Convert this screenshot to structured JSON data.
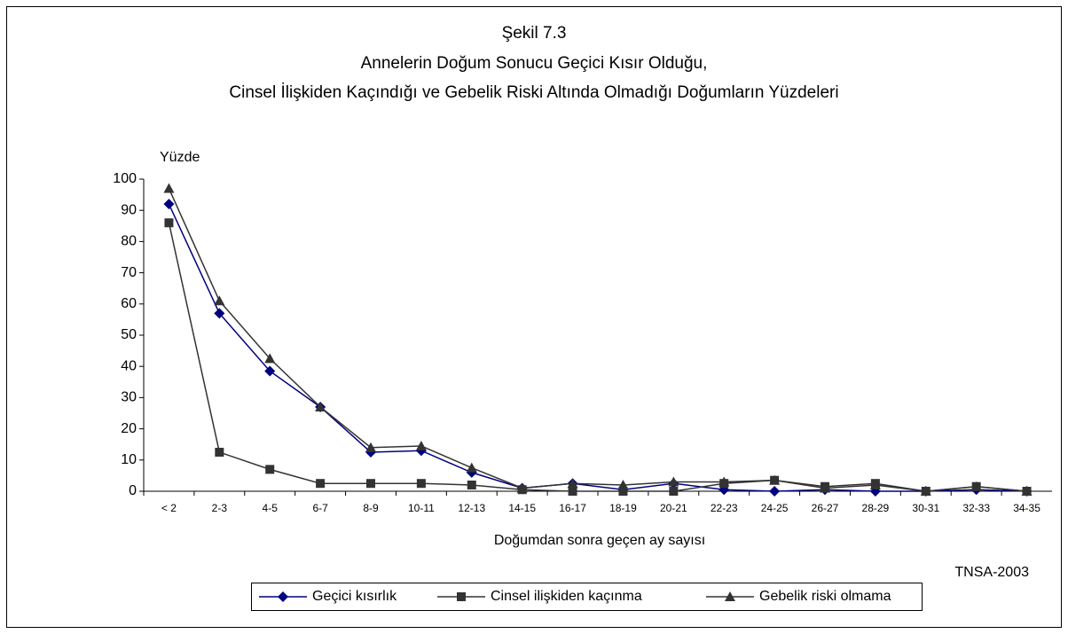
{
  "chart_data": {
    "type": "line",
    "title_lines": [
      "Şekil 7.3",
      "Annelerin Doğum Sonucu Geçici Kısır Olduğu,",
      "Cinsel İlişkiden Kaçındığı ve Gebelik Riski Altında Olmadığı Doğumların Yüzdeleri"
    ],
    "y_label": "Yüzde",
    "x_label": "Doğumdan sonra geçen ay sayısı",
    "source": "TNSA-2003",
    "categories": [
      "< 2",
      "2-3",
      "4-5",
      "6-7",
      "8-9",
      "10-11",
      "12-13",
      "14-15",
      "16-17",
      "18-19",
      "20-21",
      "22-23",
      "24-25",
      "26-27",
      "28-29",
      "30-31",
      "32-33",
      "34-35"
    ],
    "series": [
      {
        "name": "Geçici kısırlık",
        "color": "#000080",
        "marker": "diamond",
        "values": [
          92,
          57,
          38.5,
          27,
          12.5,
          13,
          6,
          1,
          2.5,
          0.5,
          2.5,
          0.5,
          0,
          0.5,
          0,
          0,
          0.5,
          0
        ]
      },
      {
        "name": "Cinsel ilişkiden kaçınma",
        "color": "#333333",
        "marker": "square",
        "values": [
          86,
          12.5,
          7,
          2.5,
          2.5,
          2.5,
          2,
          0.5,
          0,
          0,
          0,
          2.5,
          3.5,
          1.5,
          2.5,
          0,
          1.5,
          0
        ]
      },
      {
        "name": "Gebelik riski olmama",
        "color": "#333333",
        "marker": "triangle",
        "values": [
          97,
          61,
          42.5,
          27,
          14,
          14.5,
          7.5,
          1,
          2.5,
          2,
          3,
          3,
          3.5,
          1,
          2,
          0,
          1.5,
          0
        ]
      }
    ],
    "ylim": [
      0,
      100
    ],
    "yticks": [
      0,
      10,
      20,
      30,
      40,
      50,
      60,
      70,
      80,
      90,
      100
    ],
    "legend": "bottom"
  }
}
